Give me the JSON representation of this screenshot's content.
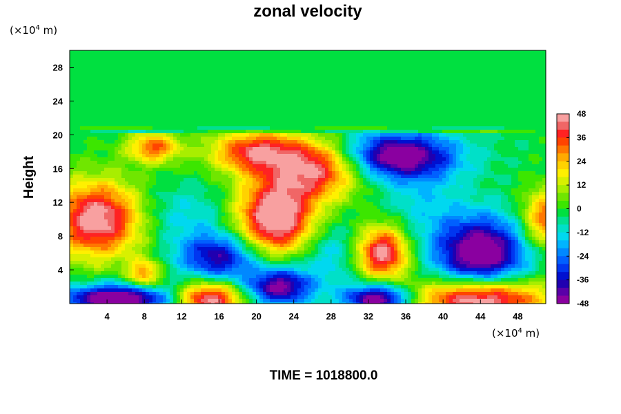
{
  "chart_data": {
    "type": "heatmap",
    "title": "zonal velocity",
    "ylabel": "Height",
    "xlabel": "",
    "x_units": {
      "prefix": "(×10",
      "exponent": "4",
      "suffix": " m)"
    },
    "y_units": {
      "prefix": "(×10",
      "exponent": "4",
      "suffix": " m)"
    },
    "xlim": [
      0,
      51
    ],
    "ylim": [
      0,
      30
    ],
    "x_ticks": [
      4,
      8,
      12,
      16,
      20,
      24,
      28,
      32,
      36,
      40,
      44,
      48
    ],
    "y_ticks": [
      4,
      8,
      12,
      16,
      20,
      24,
      28
    ],
    "colorbar": {
      "range": [
        -48,
        48
      ],
      "ticks": [
        48,
        36,
        24,
        12,
        0,
        -12,
        -24,
        -36,
        -48
      ],
      "levels": [
        {
          "from": 44,
          "to": 48,
          "color": "#f8a0a0"
        },
        {
          "from": 40,
          "to": 44,
          "color": "#f06666"
        },
        {
          "from": 36,
          "to": 40,
          "color": "#ff2222"
        },
        {
          "from": 32,
          "to": 36,
          "color": "#ff4400"
        },
        {
          "from": 28,
          "to": 32,
          "color": "#ff7700"
        },
        {
          "from": 24,
          "to": 28,
          "color": "#ffaa00"
        },
        {
          "from": 20,
          "to": 24,
          "color": "#ffd200"
        },
        {
          "from": 16,
          "to": 20,
          "color": "#fff000"
        },
        {
          "from": 12,
          "to": 16,
          "color": "#d8f000"
        },
        {
          "from": 8,
          "to": 12,
          "color": "#a8ee00"
        },
        {
          "from": 4,
          "to": 8,
          "color": "#70e600"
        },
        {
          "from": 0,
          "to": 4,
          "color": "#3ce600"
        },
        {
          "from": -4,
          "to": 0,
          "color": "#00e040"
        },
        {
          "from": -8,
          "to": -4,
          "color": "#00e090"
        },
        {
          "from": -12,
          "to": -8,
          "color": "#00e0c8"
        },
        {
          "from": -16,
          "to": -12,
          "color": "#00d8f0"
        },
        {
          "from": -20,
          "to": -16,
          "color": "#00b4ff"
        },
        {
          "from": -24,
          "to": -20,
          "color": "#0088ff"
        },
        {
          "from": -28,
          "to": -24,
          "color": "#0060ff"
        },
        {
          "from": -32,
          "to": -28,
          "color": "#0036f0"
        },
        {
          "from": -36,
          "to": -32,
          "color": "#0010d0"
        },
        {
          "from": -40,
          "to": -36,
          "color": "#2000b0"
        },
        {
          "from": -44,
          "to": -40,
          "color": "#5a00a8"
        },
        {
          "from": -48,
          "to": -44,
          "color": "#8a00a0"
        }
      ]
    },
    "background_value": -2,
    "features": [
      {
        "x": 3,
        "y": 10,
        "amp": 52,
        "sx": 3.5,
        "sy": 3.2
      },
      {
        "x": 22,
        "y": 10,
        "amp": 56,
        "sx": 3.0,
        "sy": 3.0
      },
      {
        "x": 20,
        "y": 18,
        "amp": 42,
        "sx": 3.5,
        "sy": 1.8
      },
      {
        "x": 27,
        "y": 16.5,
        "amp": 38,
        "sx": 3.5,
        "sy": 2.2
      },
      {
        "x": 33.5,
        "y": 6,
        "amp": 50,
        "sx": 2.0,
        "sy": 2.2
      },
      {
        "x": 44,
        "y": 0.5,
        "amp": 56,
        "sx": 5.0,
        "sy": 1.8
      },
      {
        "x": 15,
        "y": 0.5,
        "amp": 50,
        "sx": 2.5,
        "sy": 1.5
      },
      {
        "x": 9,
        "y": 18.5,
        "amp": 34,
        "sx": 2.0,
        "sy": 1.3
      },
      {
        "x": 51,
        "y": 10,
        "amp": 36,
        "sx": 1.8,
        "sy": 2.5
      },
      {
        "x": 8,
        "y": 3.5,
        "amp": 30,
        "sx": 1.2,
        "sy": 1.2
      },
      {
        "x": 25,
        "y": 14,
        "amp": 14,
        "sx": 4.0,
        "sy": 2.0
      },
      {
        "x": 35,
        "y": 17.5,
        "amp": -50,
        "sx": 4.5,
        "sy": 2.0
      },
      {
        "x": 44,
        "y": 6,
        "amp": -52,
        "sx": 3.5,
        "sy": 3.0
      },
      {
        "x": 16,
        "y": 5.5,
        "amp": -38,
        "sx": 3.0,
        "sy": 2.0
      },
      {
        "x": 22.5,
        "y": 2,
        "amp": -45,
        "sx": 2.5,
        "sy": 1.6
      },
      {
        "x": 5,
        "y": 0.5,
        "amp": -56,
        "sx": 4.0,
        "sy": 1.2
      },
      {
        "x": 33,
        "y": 0.5,
        "amp": -52,
        "sx": 2.5,
        "sy": 1.3
      },
      {
        "x": 12,
        "y": 10.5,
        "amp": -12,
        "sx": 4.0,
        "sy": 2.5
      },
      {
        "x": 28,
        "y": 6,
        "amp": -14,
        "sx": 2.5,
        "sy": 2.5
      },
      {
        "x": 38,
        "y": 12,
        "amp": -10,
        "sx": 3.0,
        "sy": 3.0
      }
    ],
    "upper_layer": {
      "from_y": 20.3,
      "value": -2
    }
  },
  "bottom_label": "TIME = 1018800.0"
}
